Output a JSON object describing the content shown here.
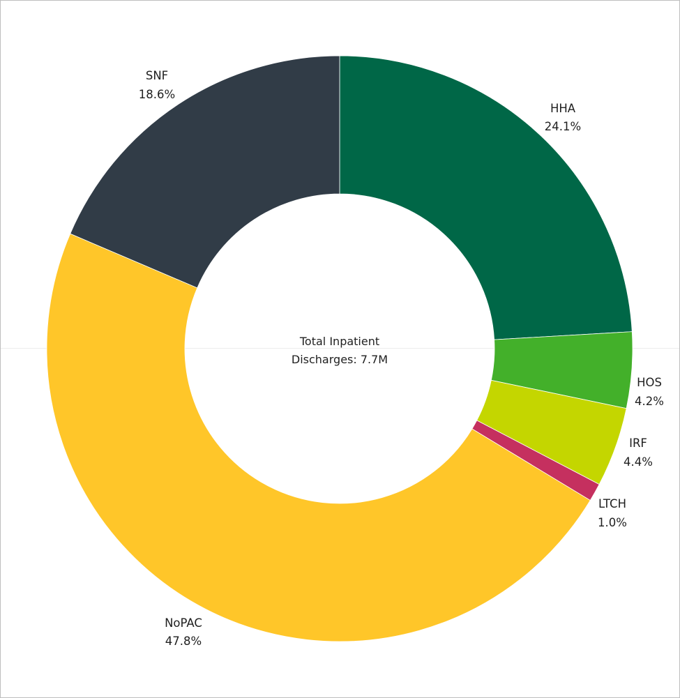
{
  "chart_data": {
    "type": "donut",
    "center_label": {
      "line1": "Total Inpatient",
      "line2": "Discharges: 7.7M"
    },
    "slices": [
      {
        "label": "HHA",
        "value": 24.1,
        "pct_text": "24.1%",
        "color": "#006747"
      },
      {
        "label": "HOS",
        "value": 4.2,
        "pct_text": "4.2%",
        "color": "#43b02a"
      },
      {
        "label": "IRF",
        "value": 4.4,
        "pct_text": "4.4%",
        "color": "#c4d600"
      },
      {
        "label": "LTCH",
        "value": 1.0,
        "pct_text": "1.0%",
        "color": "#c5305f"
      },
      {
        "label": "NoPAC",
        "value": 47.8,
        "pct_text": "47.8%",
        "color": "#ffc629"
      },
      {
        "label": "SNF",
        "value": 18.6,
        "pct_text": "18.6%",
        "color": "#313c47"
      }
    ]
  }
}
